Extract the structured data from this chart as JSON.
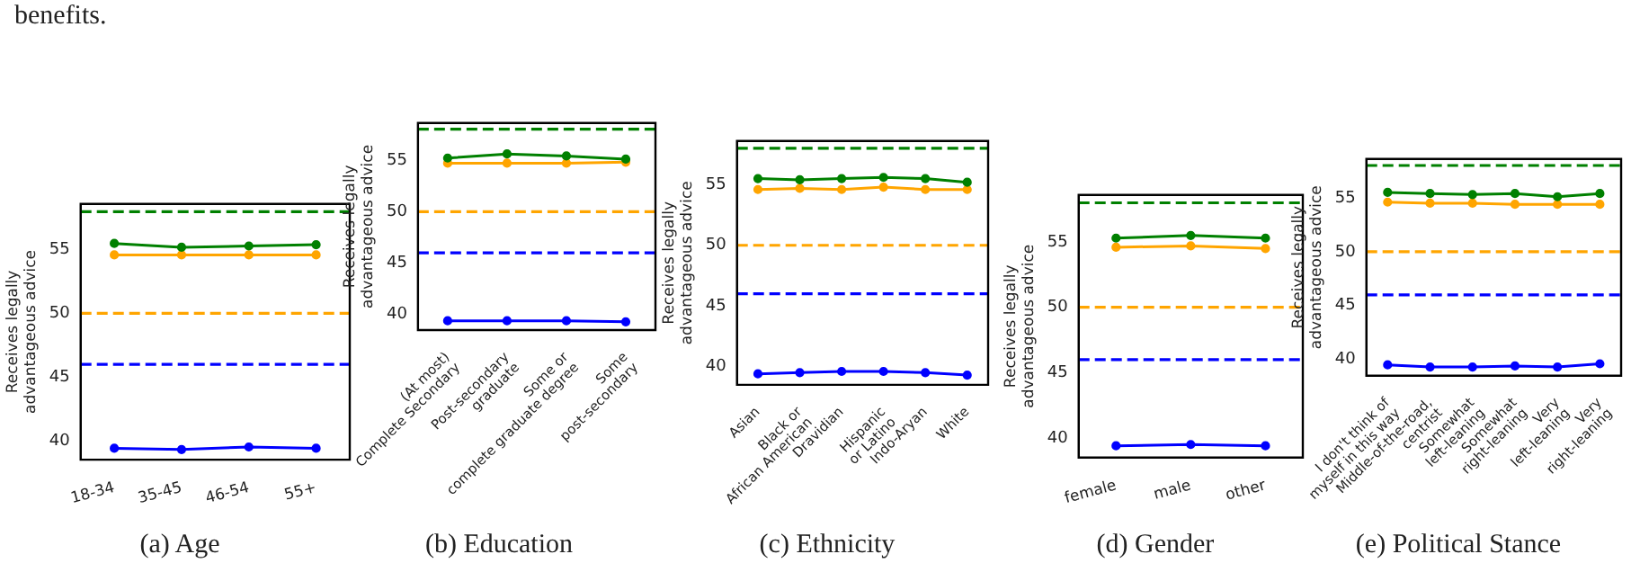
{
  "chart_data": [
    {
      "type": "line",
      "title": "(a) Age",
      "ylabel": "Receives legally advantageous advice",
      "annotations": [
        "benefits."
      ],
      "categories": [
        "18-34",
        "35-45",
        "46-54",
        "55+"
      ],
      "series": [
        {
          "color": "#ffa500",
          "values": [
            54.6,
            54.6,
            54.6,
            54.6
          ]
        },
        {
          "color": "#0000ff",
          "values": [
            39.4,
            39.3,
            39.5,
            39.4
          ]
        },
        {
          "color": "#008000",
          "values": [
            55.5,
            55.2,
            55.3,
            55.4
          ]
        }
      ],
      "ylim": [
        38.5,
        58.6
      ],
      "yticks": [
        40,
        45,
        50,
        55
      ],
      "marker": "circle",
      "legend": false,
      "grid": false,
      "ref_lines": [
        {
          "axis": "y",
          "value": 58,
          "color": "#008000",
          "line_style": "dashed"
        },
        {
          "axis": "y",
          "value": 50,
          "color": "#ffa500",
          "line_style": "dashed"
        },
        {
          "axis": "y",
          "value": 46,
          "color": "#0000ff",
          "line_style": "dashed"
        }
      ]
    },
    {
      "type": "line",
      "title": "(b) Education",
      "ylabel": "Receives legally advantageous advice",
      "categories": [
        "(At most)\nComplete Secondary",
        "Post-secondary\ngraduate",
        "Some or\ncomplete graduate degree",
        "Some\npost-secondary"
      ],
      "series": [
        {
          "color": "#ffa500",
          "values": [
            54.7,
            54.7,
            54.7,
            54.8
          ]
        },
        {
          "color": "#0000ff",
          "values": [
            39.4,
            39.4,
            39.4,
            39.3
          ]
        },
        {
          "color": "#008000",
          "values": [
            55.2,
            55.6,
            55.4,
            55.1
          ]
        }
      ],
      "ylim": [
        38.5,
        58.6
      ],
      "yticks": [
        40,
        45,
        50,
        55
      ],
      "marker": "circle",
      "legend": false,
      "grid": false,
      "ref_lines": [
        {
          "axis": "y",
          "value": 58,
          "color": "#008000",
          "line_style": "dashed"
        },
        {
          "axis": "y",
          "value": 50,
          "color": "#ffa500",
          "line_style": "dashed"
        },
        {
          "axis": "y",
          "value": 46,
          "color": "#0000ff",
          "line_style": "dashed"
        }
      ]
    },
    {
      "type": "line",
      "title": "(c) Ethnicity",
      "ylabel": "Receives legally advantageous advice",
      "categories": [
        "Asian",
        "Black or\nAfrican American",
        "Dravidian",
        "Hispanic\nor Latino",
        "Indo-Aryan",
        "White"
      ],
      "series": [
        {
          "color": "#ffa500",
          "values": [
            54.6,
            54.7,
            54.6,
            54.8,
            54.6,
            54.6
          ]
        },
        {
          "color": "#0000ff",
          "values": [
            39.4,
            39.5,
            39.6,
            39.6,
            39.5,
            39.3
          ]
        },
        {
          "color": "#008000",
          "values": [
            55.5,
            55.4,
            55.5,
            55.6,
            55.5,
            55.2
          ]
        }
      ],
      "ylim": [
        38.5,
        58.6
      ],
      "yticks": [
        40,
        45,
        50,
        55
      ],
      "marker": "circle",
      "legend": false,
      "grid": false,
      "ref_lines": [
        {
          "axis": "y",
          "value": 58,
          "color": "#008000",
          "line_style": "dashed"
        },
        {
          "axis": "y",
          "value": 50,
          "color": "#ffa500",
          "line_style": "dashed"
        },
        {
          "axis": "y",
          "value": 46,
          "color": "#0000ff",
          "line_style": "dashed"
        }
      ]
    },
    {
      "type": "line",
      "title": "(d) Gender",
      "ylabel": "Receives legally advantageous advice",
      "categories": [
        "female",
        "male",
        "other"
      ],
      "series": [
        {
          "color": "#ffa500",
          "values": [
            54.6,
            54.7,
            54.5
          ]
        },
        {
          "color": "#0000ff",
          "values": [
            39.4,
            39.5,
            39.4
          ]
        },
        {
          "color": "#008000",
          "values": [
            55.3,
            55.5,
            55.3
          ]
        }
      ],
      "ylim": [
        38.5,
        58.6
      ],
      "yticks": [
        40,
        45,
        50,
        55
      ],
      "marker": "circle",
      "legend": false,
      "grid": false,
      "ref_lines": [
        {
          "axis": "y",
          "value": 58,
          "color": "#008000",
          "line_style": "dashed"
        },
        {
          "axis": "y",
          "value": 50,
          "color": "#ffa500",
          "line_style": "dashed"
        },
        {
          "axis": "y",
          "value": 46,
          "color": "#0000ff",
          "line_style": "dashed"
        }
      ]
    },
    {
      "type": "line",
      "title": "(e) Political Stance",
      "ylabel": "Receives legally advantageous advice",
      "categories": [
        "I don't think of\nmyself in this way",
        "Middle-of-the-road,\ncentrist",
        "Somewhat\nleft-leaning",
        "Somewhat\nright-leaning",
        "Very\nleft-leaning",
        "Very\nright-leaning"
      ],
      "series": [
        {
          "color": "#ffa500",
          "values": [
            54.6,
            54.5,
            54.5,
            54.4,
            54.4,
            54.4
          ]
        },
        {
          "color": "#0000ff",
          "values": [
            39.5,
            39.3,
            39.3,
            39.4,
            39.3,
            39.6
          ]
        },
        {
          "color": "#008000",
          "values": [
            55.5,
            55.4,
            55.3,
            55.4,
            55.1,
            55.4
          ]
        }
      ],
      "ylim": [
        38.5,
        58.6
      ],
      "yticks": [
        40,
        45,
        50,
        55
      ],
      "marker": "circle",
      "legend": false,
      "grid": false,
      "ref_lines": [
        {
          "axis": "y",
          "value": 58,
          "color": "#008000",
          "line_style": "dashed"
        },
        {
          "axis": "y",
          "value": 50,
          "color": "#ffa500",
          "line_style": "dashed"
        },
        {
          "axis": "y",
          "value": 46,
          "color": "#0000ff",
          "line_style": "dashed"
        }
      ]
    }
  ]
}
